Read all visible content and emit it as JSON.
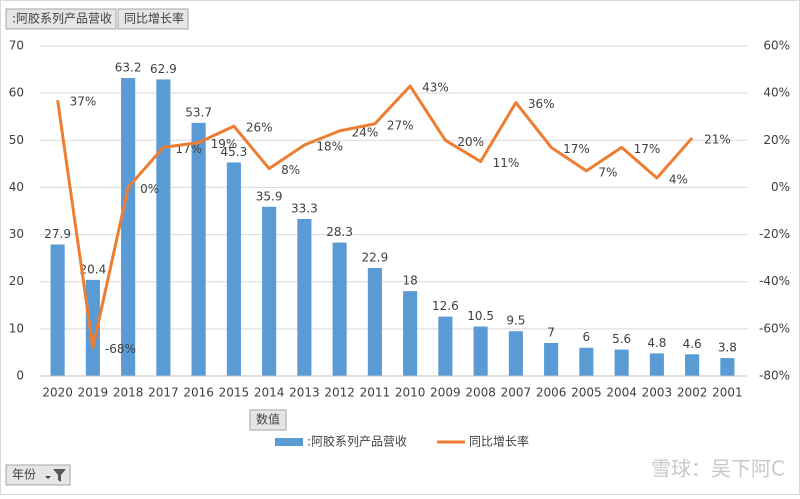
{
  "chart_data": {
    "type": "bar-line",
    "categories": [
      "2020",
      "2019",
      "2018",
      "2017",
      "2016",
      "2015",
      "2014",
      "2013",
      "2012",
      "2011",
      "2010",
      "2009",
      "2008",
      "2007",
      "2006",
      "2005",
      "2004",
      "2003",
      "2002",
      "2001"
    ],
    "series": [
      {
        "name": ":阿胶系列产品营收",
        "type": "bar",
        "color": "#5b9bd5",
        "values": [
          27.9,
          20.4,
          63.2,
          62.9,
          53.7,
          45.3,
          35.9,
          33.3,
          28.3,
          22.9,
          18,
          12.6,
          10.5,
          9.5,
          7,
          6,
          5.6,
          4.8,
          4.6,
          3.8
        ]
      },
      {
        "name": "同比增长率",
        "type": "line",
        "axis": "y2",
        "color": "#ed7d31",
        "values": [
          37,
          -68,
          0,
          17,
          19,
          26,
          8,
          18,
          24,
          27,
          43,
          20,
          11,
          36,
          17,
          7,
          17,
          4,
          21,
          null
        ],
        "value_labels": [
          "37%",
          "-68%",
          "0%",
          "17%",
          "19%",
          "26%",
          "8%",
          "18%",
          "24%",
          "27%",
          "43%",
          "20%",
          "11%",
          "36%",
          "17%",
          "7%",
          "17%",
          "4%",
          "21%",
          null
        ]
      }
    ],
    "ylim": [
      0,
      70
    ],
    "yticks": [
      0,
      10,
      20,
      30,
      40,
      50,
      60,
      70
    ],
    "y2lim": [
      -80,
      60
    ],
    "y2ticks": [
      {
        "value": -80,
        "label": "-80%"
      },
      {
        "value": -60,
        "label": "-60%"
      },
      {
        "value": -40,
        "label": "-40%"
      },
      {
        "value": -20,
        "label": "-20%"
      },
      {
        "value": 0,
        "label": "0%"
      },
      {
        "value": 20,
        "label": "20%"
      },
      {
        "value": 40,
        "label": "40%"
      },
      {
        "value": 60,
        "label": "60%"
      }
    ],
    "grid": true,
    "legend": "bottom"
  },
  "pivot": {
    "values_button": "数值",
    "axis_button": "年份"
  },
  "watermark": "雪球：吴下阿C"
}
